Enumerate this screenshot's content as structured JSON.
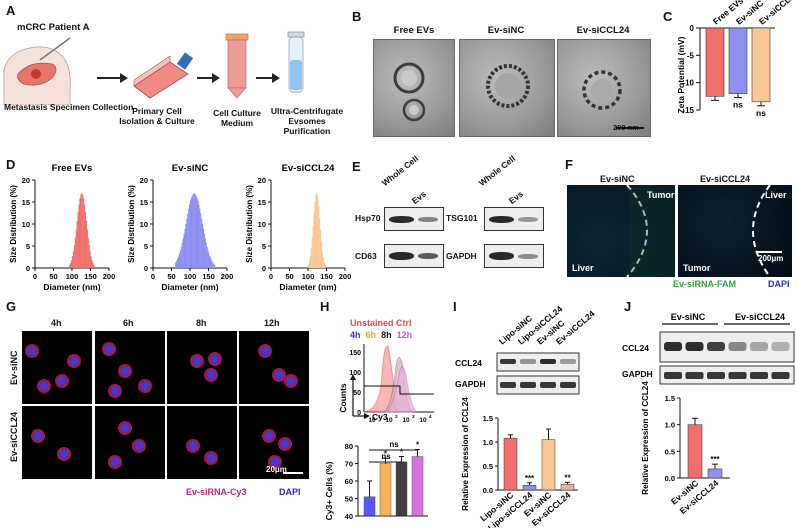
{
  "panels": {
    "A": "A",
    "B": "B",
    "C": "C",
    "D": "D",
    "E": "E",
    "F": "F",
    "G": "G",
    "H": "H",
    "I": "I",
    "J": "J"
  },
  "a": {
    "patient": "mCRC Patient A",
    "steps": [
      "Metastasis Specimen Collection",
      "Primary Cell Isolation & Culture",
      "Cell Culture Medium",
      "Ultra-Centrifugate Evsomes Purification"
    ]
  },
  "b": {
    "labels": [
      "Free EVs",
      "Ev-siNC",
      "Ev-siCCL24"
    ],
    "scalebar": "200 nm"
  },
  "c": {
    "ylabel": "Zeta Potential (mV)",
    "categories": [
      "Free EVs",
      "Ev-siNC",
      "Ev-siCCL24"
    ],
    "sig": [
      "",
      "ns",
      "ns"
    ],
    "colors": [
      "#f06f6c",
      "#8f8ff2",
      "#f7c893"
    ],
    "ticks": [
      "0",
      "-5",
      "-10",
      "-15"
    ]
  },
  "d": {
    "titles": [
      "Free EVs",
      "Ev-siNC",
      "Ev-siCCL24"
    ],
    "ylabel": "Size Distribution (%)",
    "xlabel": "Diameter (nm)",
    "xticks": [
      "0",
      "50",
      "100",
      "150",
      "200"
    ],
    "yticks": [
      "0",
      "5",
      "10",
      "15",
      "20"
    ],
    "colors": [
      "#f06f6c",
      "#8f8ff2",
      "#f7c893"
    ]
  },
  "e": {
    "col_labels": [
      "Whole Cell",
      "Evs"
    ],
    "left_proteins": [
      "Hsp70",
      "CD63"
    ],
    "right_proteins": [
      "TSG101",
      "GAPDH"
    ]
  },
  "f": {
    "titles": [
      "Ev-siNC",
      "Ev-siCCL24"
    ],
    "tags_left": [
      "Tumor",
      "Liver"
    ],
    "tags_right": [
      "Liver",
      "Tumor"
    ],
    "scalebar": "200μm",
    "legend_green": "Ev-siRNA-FAM",
    "legend_blue": "DAPI"
  },
  "g": {
    "times": [
      "4h",
      "6h",
      "8h",
      "12h"
    ],
    "rows": [
      "Ev-siNC",
      "Ev-siCCL24"
    ],
    "scalebar": "20μm",
    "legend_red": "Ev-siRNA-Cy3",
    "legend_blue": "DAPI"
  },
  "h": {
    "legend_title": "Unstained Ctrl",
    "legend_times": [
      "4h",
      "6h",
      "8h",
      "12h"
    ],
    "legend_colors": [
      "#2d2dff",
      "#f0a030",
      "#111111",
      "#d24fd6"
    ],
    "flow_ylabel": "Counts",
    "flow_xlabel": "Cy3",
    "flow_yticks": [
      "0",
      "50",
      "100",
      "150"
    ],
    "flow_xticks": [
      "10",
      "10",
      "10",
      "10"
    ],
    "flow_xexp": [
      "1",
      "2",
      "3",
      "4"
    ],
    "bar_ylabel": "Cy3+ Cells (%)",
    "bar_yticks": [
      "40",
      "50",
      "60",
      "70",
      "80"
    ],
    "sig_top": [
      "ns",
      "ns"
    ],
    "stars": [
      "*",
      "*",
      "*"
    ]
  },
  "i": {
    "lanes": [
      "Lipo-siNC",
      "Lipo-siCCL24",
      "Ev-siNC",
      "Ev-siCCL24"
    ],
    "proteins": [
      "CCL24",
      "GAPDH"
    ],
    "ylabel": "Relative Expression of CCL24",
    "yticks": [
      "0.0",
      "0.5",
      "1.0",
      "1.5"
    ],
    "stars": [
      "***",
      "**"
    ]
  },
  "j": {
    "groups": [
      "Ev-siNC",
      "Ev-siCCL24"
    ],
    "proteins": [
      "CCL24",
      "GAPDH"
    ],
    "ylabel": "Relative Expression of CCL24",
    "yticks": [
      "0.0",
      "0.5",
      "1.0",
      "1.5"
    ],
    "categories": [
      "Ev-siNC",
      "Ev-siCCL24"
    ],
    "stars": [
      "***"
    ]
  },
  "chart_data": [
    {
      "type": "bar",
      "panel": "C",
      "categories": [
        "Free EVs",
        "Ev-siNC",
        "Ev-siCCL24"
      ],
      "values": [
        -12.5,
        -12.0,
        -13.5
      ],
      "ylabel": "Zeta Potential (mV)",
      "ylim": [
        -15,
        0
      ]
    },
    {
      "type": "bar",
      "panel": "H",
      "categories": [
        "4h",
        "6h",
        "8h",
        "12h"
      ],
      "values": [
        51,
        70,
        71,
        74
      ],
      "errors": [
        9,
        3,
        3,
        4
      ],
      "ylabel": "Cy3+ Cells (%)",
      "ylim": [
        40,
        80
      ]
    },
    {
      "type": "bar",
      "panel": "I",
      "categories": [
        "Lipo-siNC",
        "Lipo-siCCL24",
        "Ev-siNC",
        "Ev-siCCL24"
      ],
      "values": [
        1.08,
        0.1,
        1.05,
        0.12
      ],
      "errors": [
        0.07,
        0.05,
        0.22,
        0.04
      ],
      "ylabel": "Relative Expression of CCL24",
      "ylim": [
        0,
        1.5
      ]
    },
    {
      "type": "bar",
      "panel": "J",
      "categories": [
        "Ev-siNC",
        "Ev-siCCL24"
      ],
      "values": [
        1.0,
        0.17
      ],
      "errors": [
        0.12,
        0.09
      ],
      "ylabel": "Relative Expression of CCL24",
      "ylim": [
        0,
        1.5
      ]
    }
  ]
}
